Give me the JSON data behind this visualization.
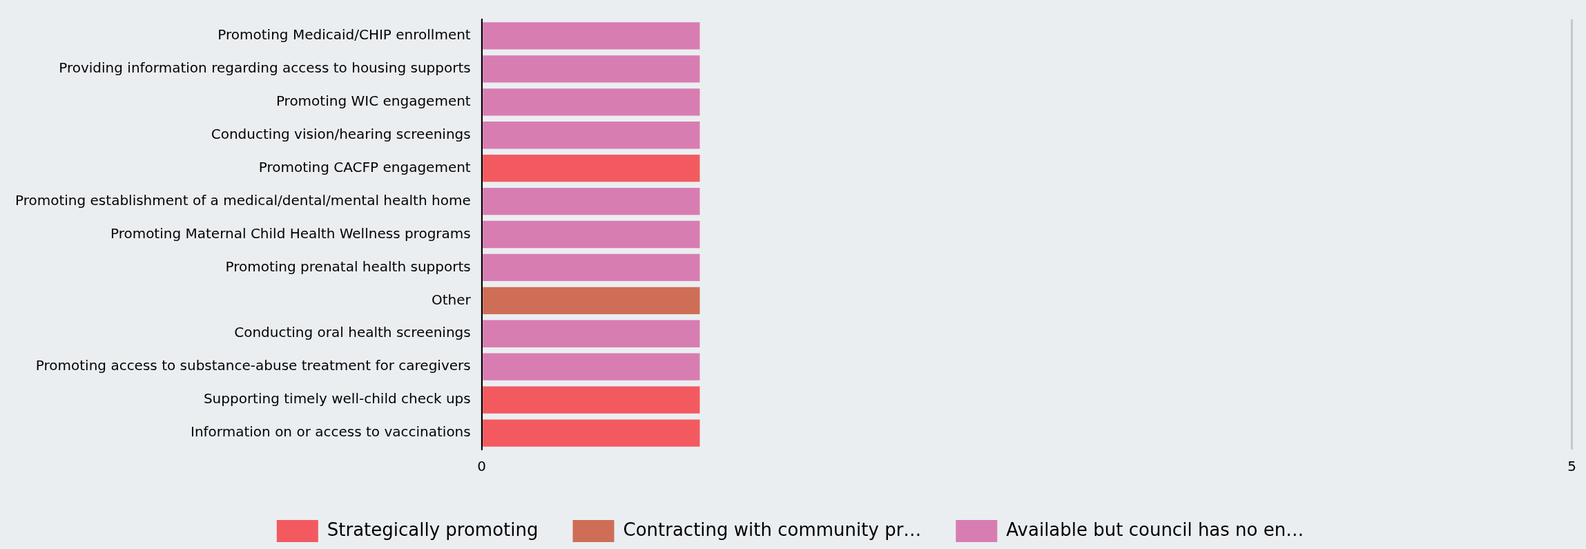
{
  "chart_data": {
    "type": "bar",
    "orientation": "horizontal",
    "stacked": true,
    "categories": [
      "Promoting Medicaid/CHIP enrollment",
      "Providing information regarding access to housing supports",
      "Promoting WIC engagement",
      "Conducting vision/hearing screenings",
      "Promoting CACFP engagement",
      "Promoting establishment of a medical/dental/mental health home",
      "Promoting Maternal Child Health Wellness programs",
      "Promoting prenatal health supports",
      "Other",
      "Conducting oral health screenings",
      "Promoting access to substance-abuse treatment for caregivers",
      "Supporting timely well-child check ups",
      "Information on or access to vaccinations"
    ],
    "series": [
      {
        "name": "Strategically promoting",
        "color": "#f25a60",
        "values": [
          null,
          null,
          null,
          null,
          1,
          null,
          null,
          null,
          null,
          null,
          null,
          1,
          1
        ]
      },
      {
        "name": "Contracting with community pr…",
        "color": "#cf6e56",
        "values": [
          null,
          null,
          null,
          null,
          null,
          null,
          null,
          null,
          1,
          null,
          null,
          null,
          null
        ]
      },
      {
        "name": "Available but council has no en…",
        "color": "#d87db1",
        "values": [
          1,
          1,
          1,
          1,
          null,
          1,
          1,
          1,
          null,
          1,
          1,
          null,
          null
        ]
      }
    ],
    "xlim": [
      0,
      5
    ],
    "xticks": [
      0,
      5
    ],
    "grid": "x",
    "legend": "bottom"
  }
}
